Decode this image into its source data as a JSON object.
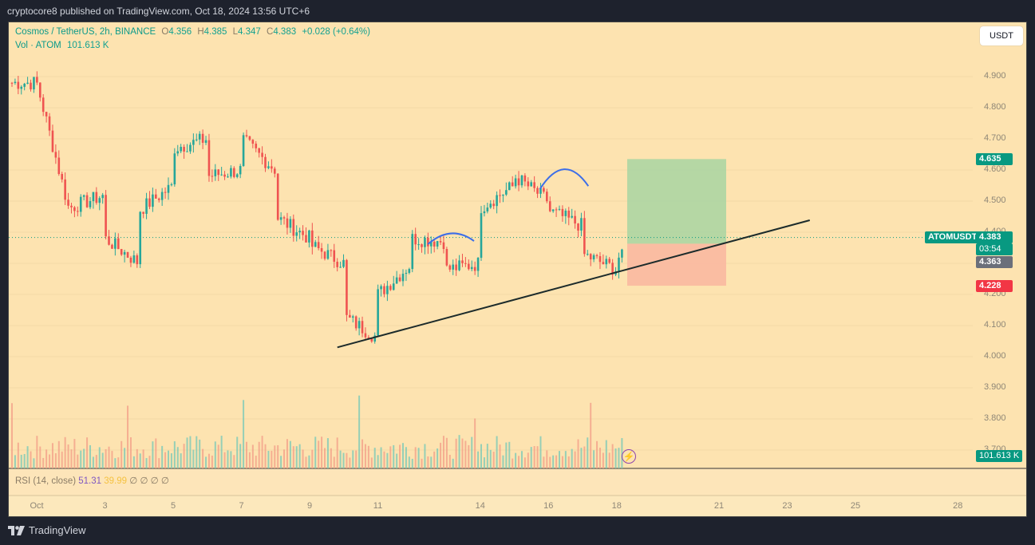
{
  "publish": {
    "text": "cryptocore8 published on TradingView.com, Oct 18, 2024 13:56 UTC+6"
  },
  "legend": {
    "symbol": "Cosmos / TetherUS, 2h, BINANCE",
    "open_label": "O",
    "open": "4.356",
    "high_label": "H",
    "high": "4.385",
    "low_label": "L",
    "low": "4.347",
    "close_label": "C",
    "close": "4.383",
    "change": "+0.028 (+0.64%)",
    "volume_label": "Vol · ATOM",
    "volume": "101.613 K"
  },
  "currency_button": "USDT",
  "y_ticks": [
    "4.900",
    "4.800",
    "4.700",
    "4.600",
    "4.500",
    "4.400",
    "4.300",
    "4.200",
    "4.100",
    "4.000",
    "3.900",
    "3.800",
    "3.700"
  ],
  "x_ticks": [
    "Oct",
    "3",
    "5",
    "7",
    "9",
    "11",
    "14",
    "16",
    "18",
    "21",
    "23",
    "25",
    "28"
  ],
  "price_tags": {
    "target": "4.635",
    "symbol": "ATOMUSDT",
    "last": "4.383",
    "countdown": "03:54",
    "entry": "4.363",
    "stop": "4.228",
    "volume": "101.613 K"
  },
  "rsi": {
    "label": "RSI (14, close)",
    "value": "51.31",
    "ma": "39.99",
    "extras": "∅ ∅ ∅ ∅"
  },
  "footer": {
    "brand": "TradingView"
  },
  "colors": {
    "up": "#26a69a",
    "down": "#ef5350",
    "background": "#fde3b0",
    "target_zone": "#a8d5a2",
    "stop_zone": "#f9b6a0",
    "arc": "#3d6ee8",
    "trendline": "#1c2b2b"
  },
  "chart_data": {
    "type": "candlestick",
    "title": "Cosmos / TetherUS, 2h, BINANCE",
    "ylim": [
      3.7,
      4.95
    ],
    "close_path": [
      [
        "2024-10-01",
        4.88
      ],
      [
        "2024-10-01",
        4.92
      ],
      [
        "2024-10-01",
        4.83
      ],
      [
        "2024-10-01",
        4.75
      ],
      [
        "2024-10-01",
        4.82
      ],
      [
        "2024-10-01",
        4.88
      ],
      [
        "2024-10-02",
        4.45
      ],
      [
        "2024-10-02",
        4.48
      ],
      [
        "2024-10-03",
        4.52
      ],
      [
        "2024-10-03",
        4.45
      ],
      [
        "2024-10-03",
        4.38
      ],
      [
        "2024-10-04",
        4.3
      ],
      [
        "2024-10-04",
        4.28
      ],
      [
        "2024-10-04",
        4.35
      ],
      [
        "2024-10-04",
        4.47
      ],
      [
        "2024-10-05",
        4.55
      ],
      [
        "2024-10-05",
        4.63
      ],
      [
        "2024-10-05",
        4.67
      ],
      [
        "2024-10-06",
        4.7
      ],
      [
        "2024-10-06",
        4.65
      ],
      [
        "2024-10-06",
        4.6
      ],
      [
        "2024-10-06",
        4.58
      ],
      [
        "2024-10-07",
        4.6
      ],
      [
        "2024-10-07",
        4.78
      ],
      [
        "2024-10-07",
        4.7
      ],
      [
        "2024-10-08",
        4.6
      ],
      [
        "2024-10-08",
        4.65
      ],
      [
        "2024-10-08",
        4.58
      ],
      [
        "2024-10-08",
        4.45
      ],
      [
        "2024-10-09",
        4.38
      ],
      [
        "2024-10-09",
        4.35
      ],
      [
        "2024-10-09",
        4.38
      ],
      [
        "2024-10-09",
        4.36
      ],
      [
        "2024-10-10",
        4.3
      ],
      [
        "2024-10-10",
        4.22
      ],
      [
        "2024-10-10",
        4.2
      ],
      [
        "2024-10-10",
        4.13
      ],
      [
        "2024-10-11",
        4.06
      ],
      [
        "2024-10-11",
        4.12
      ],
      [
        "2024-10-11",
        4.2
      ],
      [
        "2024-10-12",
        4.3
      ],
      [
        "2024-10-12",
        4.33
      ],
      [
        "2024-10-12",
        4.38
      ],
      [
        "2024-10-13",
        4.37
      ],
      [
        "2024-10-13",
        4.35
      ],
      [
        "2024-10-13",
        4.33
      ],
      [
        "2024-10-13",
        4.28
      ],
      [
        "2024-10-14",
        4.3
      ],
      [
        "2024-10-14",
        4.43
      ],
      [
        "2024-10-14",
        4.48
      ],
      [
        "2024-10-15",
        4.55
      ],
      [
        "2024-10-15",
        4.5
      ],
      [
        "2024-10-15",
        4.55
      ],
      [
        "2024-10-15",
        4.58
      ],
      [
        "2024-10-16",
        4.5
      ],
      [
        "2024-10-16",
        4.47
      ],
      [
        "2024-10-16",
        4.48
      ],
      [
        "2024-10-16",
        4.47
      ],
      [
        "2024-10-17",
        4.42
      ],
      [
        "2024-10-17",
        4.46
      ],
      [
        "2024-10-17",
        4.38
      ],
      [
        "2024-10-17",
        4.33
      ],
      [
        "2024-10-18",
        4.28
      ],
      [
        "2024-10-18",
        4.32
      ],
      [
        "2024-10-18",
        4.38
      ]
    ],
    "position": {
      "target": 4.635,
      "entry": 4.363,
      "stop": 4.228
    },
    "trendline": [
      [
        "2024-10-10",
        4.03
      ],
      [
        "2024-10-22",
        4.4
      ]
    ],
    "arcs": [
      {
        "from": "2024-10-12",
        "to": "2024-10-13",
        "peak": 4.405
      },
      {
        "from": "2024-10-15",
        "to": "2024-10-16",
        "peak": 4.615
      }
    ]
  }
}
